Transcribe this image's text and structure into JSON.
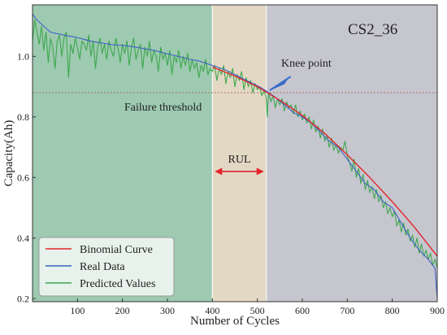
{
  "chart_data": {
    "type": "line",
    "title": "CS2_36",
    "xlabel": "Number of Cycles",
    "ylabel": "Capacity(Ah)",
    "xlim": [
      0,
      900
    ],
    "ylim": [
      0.19,
      1.17
    ],
    "x_ticks": [
      100,
      200,
      300,
      400,
      500,
      600,
      700,
      800,
      900
    ],
    "y_ticks": [
      0.2,
      0.4,
      0.6,
      0.8,
      1.0
    ],
    "x_tick_labels": [
      "100",
      "200",
      "300",
      "400",
      "500",
      "600",
      "700",
      "800",
      "900"
    ],
    "y_tick_labels": [
      "0.2",
      "0.4",
      "0.6",
      "0.8",
      "1.0"
    ],
    "grid": false,
    "legend_position": "bottom-left",
    "regions": [
      {
        "x0": 0,
        "x1": 400,
        "color": "#9dcab0"
      },
      {
        "x0": 400,
        "x1": 520,
        "color": "#e3d8c4"
      },
      {
        "x0": 520,
        "x1": 900,
        "color": "#c6c6cf"
      }
    ],
    "threshold": {
      "y": 0.88,
      "label": "Failure threshold",
      "color": "#a9745f"
    },
    "knee_point": {
      "x": 520,
      "y": 0.885,
      "label": "Knee point"
    },
    "rul": {
      "x0": 400,
      "x1": 520,
      "label": "RUL",
      "color": "#e4222a"
    },
    "series": [
      {
        "name": "Binomial Curve",
        "color": "#e3262b",
        "points": [
          [
            400,
            0.965
          ],
          [
            450,
            0.935
          ],
          [
            500,
            0.9
          ],
          [
            550,
            0.855
          ],
          [
            600,
            0.805
          ],
          [
            650,
            0.745
          ],
          [
            700,
            0.675
          ],
          [
            750,
            0.6
          ],
          [
            800,
            0.52
          ],
          [
            850,
            0.435
          ],
          [
            900,
            0.34
          ]
        ]
      },
      {
        "name": "Real Data",
        "color": "#3e62c4",
        "points": [
          [
            0,
            1.14
          ],
          [
            10,
            1.12
          ],
          [
            25,
            1.1
          ],
          [
            40,
            1.08
          ],
          [
            55,
            1.075
          ],
          [
            70,
            1.07
          ],
          [
            90,
            1.065
          ],
          [
            110,
            1.058
          ],
          [
            130,
            1.05
          ],
          [
            150,
            1.045
          ],
          [
            170,
            1.04
          ],
          [
            190,
            1.037
          ],
          [
            210,
            1.035
          ],
          [
            230,
            1.03
          ],
          [
            250,
            1.025
          ],
          [
            270,
            1.02
          ],
          [
            290,
            1.012
          ],
          [
            310,
            1.005
          ],
          [
            330,
            0.998
          ],
          [
            350,
            0.99
          ],
          [
            370,
            0.985
          ],
          [
            390,
            0.975
          ],
          [
            410,
            0.965
          ],
          [
            430,
            0.955
          ],
          [
            450,
            0.94
          ],
          [
            470,
            0.925
          ],
          [
            490,
            0.91
          ],
          [
            510,
            0.895
          ],
          [
            520,
            0.885
          ],
          [
            540,
            0.865
          ],
          [
            560,
            0.84
          ],
          [
            580,
            0.815
          ],
          [
            600,
            0.8
          ],
          [
            620,
            0.78
          ],
          [
            640,
            0.75
          ],
          [
            660,
            0.72
          ],
          [
            680,
            0.7
          ],
          [
            700,
            0.66
          ],
          [
            710,
            0.64
          ],
          [
            720,
            0.62
          ],
          [
            740,
            0.58
          ],
          [
            760,
            0.56
          ],
          [
            780,
            0.52
          ],
          [
            800,
            0.5
          ],
          [
            820,
            0.45
          ],
          [
            840,
            0.4
          ],
          [
            860,
            0.36
          ],
          [
            880,
            0.33
          ],
          [
            895,
            0.3
          ],
          [
            900,
            0.2
          ]
        ]
      },
      {
        "name": "Predicted Values",
        "color": "#3ea84e",
        "points": [
          [
            0,
            1.05
          ],
          [
            5,
            1.12
          ],
          [
            10,
            1.08
          ],
          [
            15,
            1.04
          ],
          [
            20,
            1.1
          ],
          [
            25,
            1.02
          ],
          [
            30,
            1.08
          ],
          [
            35,
            0.98
          ],
          [
            40,
            1.06
          ],
          [
            45,
            1.03
          ],
          [
            50,
            0.96
          ],
          [
            55,
            1.05
          ],
          [
            60,
            1.07
          ],
          [
            65,
            1.0
          ],
          [
            70,
            1.06
          ],
          [
            75,
            1.08
          ],
          [
            80,
            0.93
          ],
          [
            85,
            1.04
          ],
          [
            90,
            1.01
          ],
          [
            95,
            1.06
          ],
          [
            100,
            1.03
          ],
          [
            105,
            0.99
          ],
          [
            110,
            1.05
          ],
          [
            115,
            1.04
          ],
          [
            120,
            1.02
          ],
          [
            125,
            1.07
          ],
          [
            130,
            1.0
          ],
          [
            135,
            1.05
          ],
          [
            140,
            0.96
          ],
          [
            145,
            1.03
          ],
          [
            150,
            1.06
          ],
          [
            155,
            1.01
          ],
          [
            160,
            1.04
          ],
          [
            165,
            0.99
          ],
          [
            170,
            1.05
          ],
          [
            175,
            1.02
          ],
          [
            180,
            1.0
          ],
          [
            185,
            1.06
          ],
          [
            190,
            1.03
          ],
          [
            195,
            0.98
          ],
          [
            200,
            1.04
          ],
          [
            205,
            1.01
          ],
          [
            210,
            1.05
          ],
          [
            215,
            0.97
          ],
          [
            220,
            1.03
          ],
          [
            225,
            1.06
          ],
          [
            230,
            0.99
          ],
          [
            235,
            1.02
          ],
          [
            240,
            1.04
          ],
          [
            245,
            0.96
          ],
          [
            250,
            1.03
          ],
          [
            255,
            1.0
          ],
          [
            260,
            1.05
          ],
          [
            265,
            0.98
          ],
          [
            270,
            1.02
          ],
          [
            275,
            1.0
          ],
          [
            280,
            0.95
          ],
          [
            285,
            1.03
          ],
          [
            290,
            0.99
          ],
          [
            295,
            1.01
          ],
          [
            300,
            0.97
          ],
          [
            305,
            1.02
          ],
          [
            310,
            0.94
          ],
          [
            315,
            1.0
          ],
          [
            320,
            0.98
          ],
          [
            325,
            1.02
          ],
          [
            330,
            0.96
          ],
          [
            335,
            1.0
          ],
          [
            340,
            0.97
          ],
          [
            345,
            1.01
          ],
          [
            350,
            0.95
          ],
          [
            355,
            0.99
          ],
          [
            360,
            0.96
          ],
          [
            365,
            0.98
          ],
          [
            370,
            0.93
          ],
          [
            375,
            0.97
          ],
          [
            380,
            0.95
          ],
          [
            385,
            0.99
          ],
          [
            390,
            0.94
          ],
          [
            395,
            0.96
          ],
          [
            400,
            0.95
          ],
          [
            405,
            0.97
          ],
          [
            410,
            0.92
          ],
          [
            415,
            0.96
          ],
          [
            420,
            0.94
          ],
          [
            425,
            0.97
          ],
          [
            430,
            0.91
          ],
          [
            435,
            0.95
          ],
          [
            440,
            0.93
          ],
          [
            445,
            0.96
          ],
          [
            450,
            0.9
          ],
          [
            455,
            0.94
          ],
          [
            460,
            0.92
          ],
          [
            465,
            0.95
          ],
          [
            470,
            0.89
          ],
          [
            475,
            0.93
          ],
          [
            480,
            0.9
          ],
          [
            485,
            0.92
          ],
          [
            490,
            0.88
          ],
          [
            495,
            0.91
          ],
          [
            500,
            0.89
          ],
          [
            505,
            0.9
          ],
          [
            510,
            0.87
          ],
          [
            515,
            0.89
          ],
          [
            520,
            0.86
          ],
          [
            522,
            0.8
          ],
          [
            525,
            0.88
          ],
          [
            530,
            0.85
          ],
          [
            535,
            0.87
          ],
          [
            540,
            0.83
          ],
          [
            545,
            0.86
          ],
          [
            550,
            0.84
          ],
          [
            555,
            0.86
          ],
          [
            560,
            0.82
          ],
          [
            565,
            0.85
          ],
          [
            570,
            0.83
          ],
          [
            575,
            0.84
          ],
          [
            580,
            0.81
          ],
          [
            585,
            0.84
          ],
          [
            590,
            0.8
          ],
          [
            595,
            0.82
          ],
          [
            600,
            0.79
          ],
          [
            605,
            0.81
          ],
          [
            610,
            0.78
          ],
          [
            615,
            0.8
          ],
          [
            620,
            0.76
          ],
          [
            625,
            0.79
          ],
          [
            630,
            0.75
          ],
          [
            635,
            0.77
          ],
          [
            640,
            0.73
          ],
          [
            645,
            0.76
          ],
          [
            650,
            0.72
          ],
          [
            655,
            0.74
          ],
          [
            660,
            0.7
          ],
          [
            665,
            0.73
          ],
          [
            670,
            0.69
          ],
          [
            675,
            0.71
          ],
          [
            680,
            0.68
          ],
          [
            685,
            0.7
          ],
          [
            690,
            0.69
          ],
          [
            695,
            0.72
          ],
          [
            700,
            0.67
          ],
          [
            705,
            0.65
          ],
          [
            710,
            0.62
          ],
          [
            715,
            0.66
          ],
          [
            720,
            0.6
          ],
          [
            725,
            0.63
          ],
          [
            730,
            0.58
          ],
          [
            735,
            0.61
          ],
          [
            740,
            0.56
          ],
          [
            745,
            0.59
          ],
          [
            750,
            0.55
          ],
          [
            755,
            0.57
          ],
          [
            760,
            0.53
          ],
          [
            765,
            0.56
          ],
          [
            770,
            0.52
          ],
          [
            775,
            0.54
          ],
          [
            780,
            0.5
          ],
          [
            785,
            0.52
          ],
          [
            790,
            0.48
          ],
          [
            795,
            0.5
          ],
          [
            800,
            0.47
          ],
          [
            805,
            0.49
          ],
          [
            810,
            0.44
          ],
          [
            815,
            0.46
          ],
          [
            820,
            0.42
          ],
          [
            825,
            0.45
          ],
          [
            830,
            0.41
          ],
          [
            835,
            0.43
          ],
          [
            840,
            0.39
          ],
          [
            845,
            0.41
          ],
          [
            850,
            0.37
          ],
          [
            855,
            0.4
          ],
          [
            860,
            0.35
          ],
          [
            865,
            0.38
          ],
          [
            870,
            0.34
          ],
          [
            875,
            0.36
          ],
          [
            880,
            0.33
          ],
          [
            885,
            0.35
          ],
          [
            890,
            0.31
          ],
          [
            895,
            0.33
          ],
          [
            900,
            0.3
          ]
        ]
      }
    ]
  }
}
